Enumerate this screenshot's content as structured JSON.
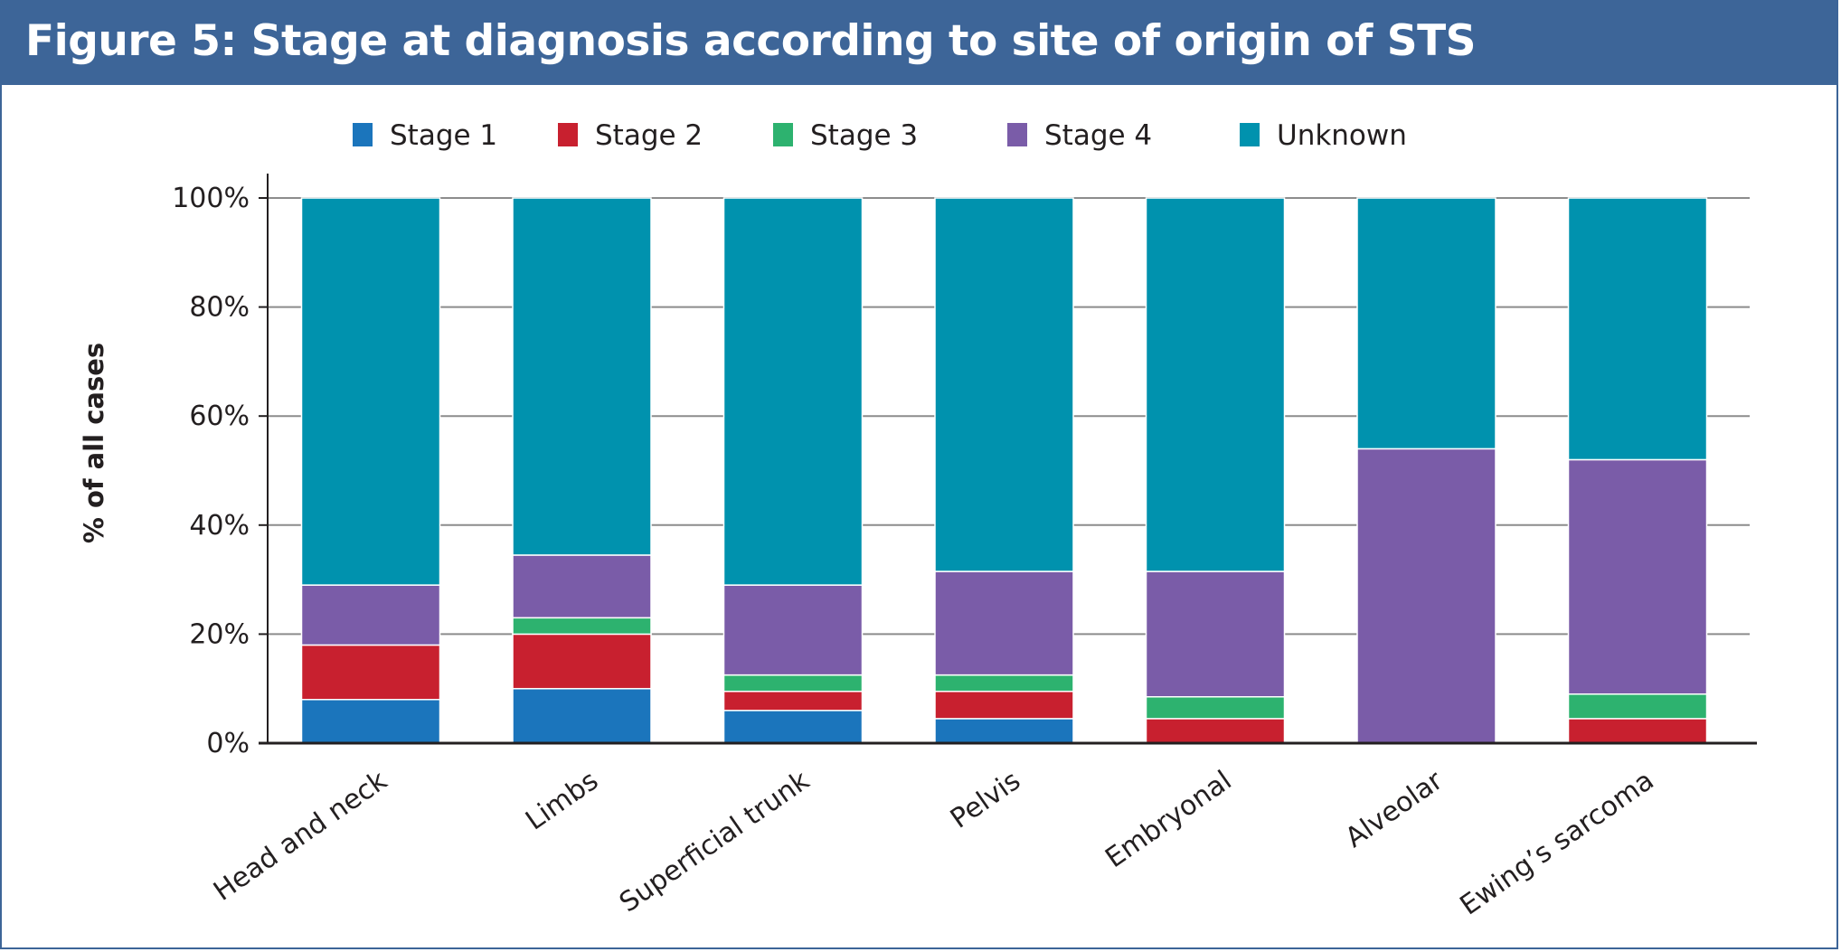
{
  "chart_data": {
    "type": "bar",
    "stacked": true,
    "title": "Figure 5: Stage at diagnosis according to site of origin of STS",
    "xlabel": "",
    "ylabel": "% of all cases",
    "ylim": [
      0,
      100
    ],
    "yticks": [
      "0%",
      "20%",
      "40%",
      "60%",
      "80%",
      "100%"
    ],
    "ytick_values": [
      0,
      20,
      40,
      60,
      80,
      100
    ],
    "grid": true,
    "legend_position": "top",
    "categories": [
      "Head and neck",
      "Limbs",
      "Superficial trunk",
      "Pelvis",
      "Embryonal",
      "Alveolar",
      "Ewing’s sarcoma"
    ],
    "series": [
      {
        "name": "Stage 1",
        "color": "#1b75bc",
        "values": [
          8,
          10,
          6,
          4.5,
          0,
          0,
          0
        ]
      },
      {
        "name": "Stage 2",
        "color": "#c8202f",
        "values": [
          10,
          10,
          3.5,
          5,
          4.5,
          0,
          4.5
        ]
      },
      {
        "name": "Stage 3",
        "color": "#2db26f",
        "values": [
          0,
          3,
          3,
          3,
          4,
          0,
          4.5
        ]
      },
      {
        "name": "Stage 4",
        "color": "#7a5ca8",
        "values": [
          11,
          11.5,
          16.5,
          19,
          23,
          54,
          43
        ]
      },
      {
        "name": "Unknown",
        "color": "#0092ae",
        "values": [
          71,
          65.5,
          71,
          68.5,
          68.5,
          46,
          48
        ]
      }
    ]
  }
}
